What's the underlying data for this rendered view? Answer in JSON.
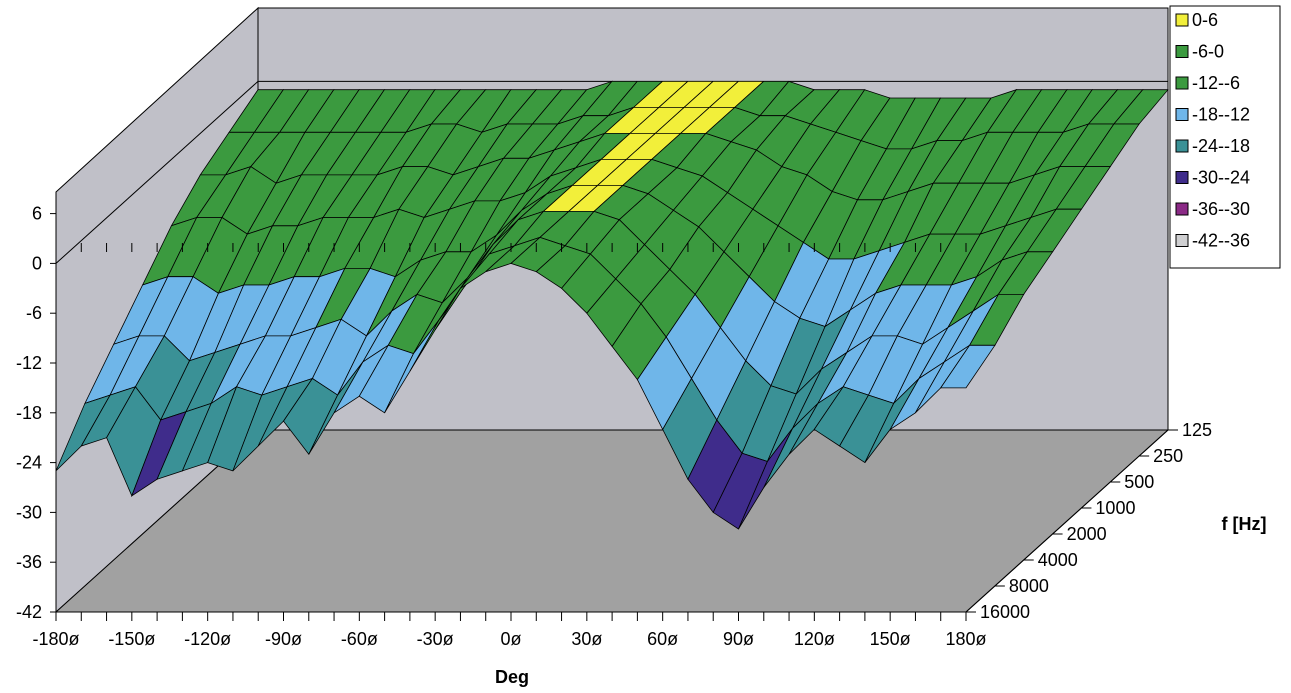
{
  "chart_data": {
    "type": "surface",
    "title": "",
    "xlabel": "Deg",
    "ylabel": "",
    "zlabel": "f [Hz]",
    "x_tick_labels": [
      "-180ø",
      "-150ø",
      "-120ø",
      "-90ø",
      "-60ø",
      "-30ø",
      "0ø",
      "30ø",
      "60ø",
      "90ø",
      "120ø",
      "150ø",
      "180ø"
    ],
    "x_values": [
      -180,
      -170,
      -160,
      -150,
      -140,
      -130,
      -120,
      -110,
      -100,
      -90,
      -80,
      -70,
      -60,
      -50,
      -40,
      -30,
      -20,
      -10,
      0,
      10,
      20,
      30,
      40,
      50,
      60,
      70,
      80,
      90,
      100,
      110,
      120,
      130,
      140,
      150,
      160,
      170,
      180
    ],
    "frequency_labels": [
      "125",
      "250",
      "500",
      "1000",
      "2000",
      "4000",
      "8000",
      "16000"
    ],
    "y_tick_labels": [
      "6",
      "0",
      "-6",
      "-12",
      "-18",
      "-24",
      "-30",
      "-36",
      "-42"
    ],
    "ylim": [
      -42,
      6
    ],
    "legend": {
      "placement": "top-right",
      "entries": [
        {
          "label": "0-6",
          "color": "#f2ef3a"
        },
        {
          "label": "-6-0",
          "color": "#3b9a3f"
        },
        {
          "label": "-12--6",
          "color": "#3b9a3f"
        },
        {
          "label": "-18--12",
          "color": "#6fb6e9"
        },
        {
          "label": "-24--18",
          "color": "#3a9196"
        },
        {
          "label": "-30--24",
          "color": "#3f2c8b"
        },
        {
          "label": "-36--30",
          "color": "#8b2a86"
        },
        {
          "label": "-42--36",
          "color": "#cfcfd1"
        }
      ]
    },
    "series": [
      {
        "name": "16000",
        "values": [
          -25,
          -22,
          -21,
          -28,
          -26,
          -25,
          -24,
          -25,
          -22,
          -19,
          -23,
          -18,
          -16,
          -18,
          -13,
          -8,
          -3,
          -1,
          0,
          -1,
          -3,
          -6,
          -10,
          -14,
          -20,
          -26,
          -30,
          -32,
          -27,
          -23,
          -20,
          -22,
          -24,
          -20,
          -18,
          -15,
          -15
        ]
      },
      {
        "name": "8000",
        "values": [
          -20,
          -19,
          -18,
          -22,
          -21,
          -20,
          -18,
          -19,
          -18,
          -17,
          -19,
          -15,
          -13,
          -14,
          -10,
          -6,
          -2,
          -1,
          0,
          -1,
          -2,
          -5,
          -8,
          -12,
          -17,
          -22,
          -26,
          -27,
          -23,
          -20,
          -18,
          -19,
          -20,
          -17,
          -15,
          -13,
          -13
        ]
      },
      {
        "name": "4000",
        "values": [
          -16,
          -15,
          -15,
          -18,
          -17,
          -16,
          -15,
          -15,
          -14,
          -13,
          -15,
          -12,
          -10,
          -11,
          -8,
          -4,
          -1,
          0,
          0,
          0,
          -1,
          -4,
          -7,
          -10,
          -14,
          -18,
          -21,
          -22,
          -19,
          -17,
          -15,
          -15,
          -16,
          -14,
          -12,
          -10,
          -10
        ]
      },
      {
        "name": "2000",
        "values": [
          -12,
          -11,
          -11,
          -13,
          -12,
          -12,
          -11,
          -11,
          -10,
          -10,
          -11,
          -9,
          -8,
          -8,
          -6,
          -3,
          -1,
          0,
          0,
          0,
          -1,
          -3,
          -5,
          -8,
          -11,
          -14,
          -16,
          -17,
          -15,
          -13,
          -12,
          -12,
          -12,
          -11,
          -9,
          -8,
          -8
        ]
      },
      {
        "name": "1000",
        "values": [
          -8,
          -7,
          -7,
          -9,
          -8,
          -8,
          -7,
          -7,
          -7,
          -6,
          -7,
          -6,
          -5,
          -5,
          -4,
          -2,
          -1,
          0,
          0,
          0,
          -1,
          -2,
          -4,
          -6,
          -8,
          -10,
          -12,
          -12,
          -11,
          -10,
          -9,
          -9,
          -9,
          -8,
          -7,
          -6,
          -6
        ]
      },
      {
        "name": "500",
        "values": [
          -5,
          -5,
          -4,
          -6,
          -5,
          -5,
          -5,
          -5,
          -4,
          -4,
          -5,
          -4,
          -3,
          -3,
          -2,
          -1,
          0,
          0,
          0,
          0,
          0,
          -1,
          -2,
          -4,
          -5,
          -7,
          -8,
          -8,
          -7,
          -6,
          -6,
          -6,
          -6,
          -5,
          -4,
          -4,
          -4
        ]
      },
      {
        "name": "250",
        "values": [
          -3,
          -3,
          -3,
          -3,
          -3,
          -3,
          -3,
          -3,
          -2,
          -2,
          -3,
          -2,
          -2,
          -2,
          -1,
          -1,
          0,
          0,
          0,
          0,
          0,
          -1,
          -1,
          -2,
          -3,
          -4,
          -5,
          -5,
          -4,
          -4,
          -3,
          -3,
          -3,
          -3,
          -2,
          -2,
          -2
        ]
      },
      {
        "name": "125",
        "values": [
          -1,
          -1,
          -1,
          -1,
          -1,
          -1,
          -1,
          -1,
          -1,
          -1,
          -1,
          -1,
          -1,
          -1,
          0,
          0,
          0,
          0,
          0,
          0,
          0,
          0,
          -1,
          -1,
          -1,
          -2,
          -2,
          -2,
          -2,
          -2,
          -1,
          -1,
          -1,
          -1,
          -1,
          -1,
          -1
        ]
      }
    ]
  }
}
